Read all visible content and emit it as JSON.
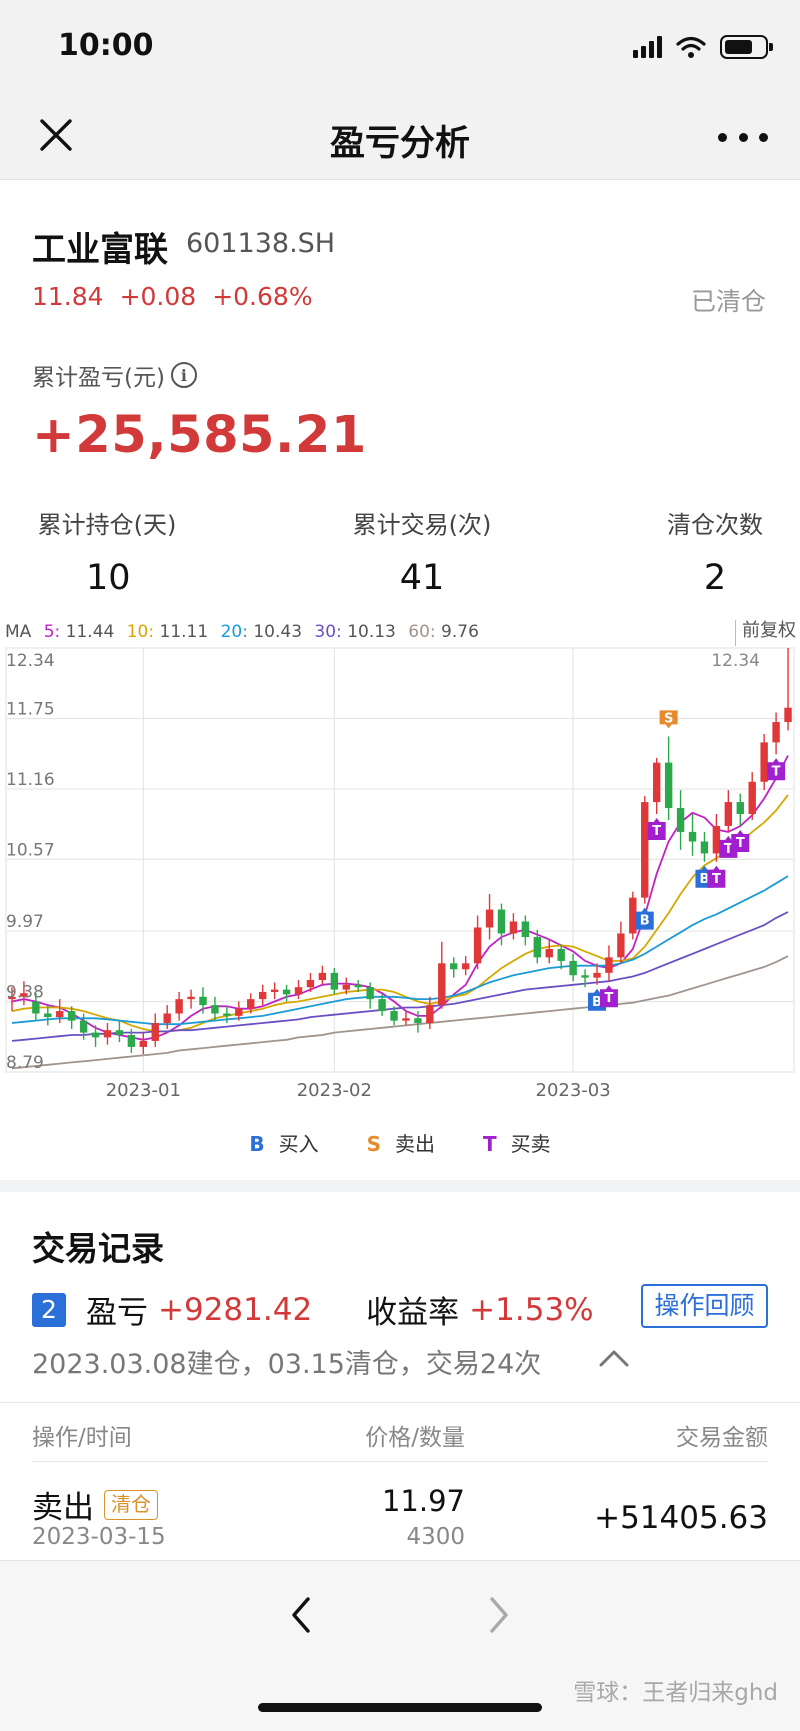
{
  "status_bar": {
    "time": "10:00"
  },
  "nav": {
    "title": "盈亏分析"
  },
  "stock": {
    "name": "工业富联",
    "code": "601138.SH",
    "price": "11.84",
    "change": "+0.08",
    "change_pct": "+0.68%",
    "status": "已清仓"
  },
  "summary": {
    "cumulative_pnl_label": "累计盈亏(元)",
    "cumulative_pnl_value": "+25,585.21",
    "stats": [
      {
        "label": "累计持仓(天)",
        "value": "10"
      },
      {
        "label": "累计交易(次)",
        "value": "41"
      },
      {
        "label": "清仓次数",
        "value": "2"
      }
    ]
  },
  "chart_data": {
    "type": "candlestick",
    "ma_prefix": "MA",
    "ma_legend": [
      {
        "name": "5:",
        "value": "11.44",
        "color": "#c020c8"
      },
      {
        "name": "10:",
        "value": "11.11",
        "color": "#d4a800"
      },
      {
        "name": "20:",
        "value": "10.43",
        "color": "#1a9ad6"
      },
      {
        "name": "30:",
        "value": "10.13",
        "color": "#6a4fc4"
      },
      {
        "name": "60:",
        "value": "9.76",
        "color": "#a0948c"
      }
    ],
    "adjustment_label": "前复权",
    "y_ticks": [
      "12.34",
      "11.75",
      "11.16",
      "10.57",
      "9.97",
      "9.38",
      "8.79"
    ],
    "ylim": [
      8.79,
      12.34
    ],
    "max_label": "12.34",
    "x_labels": [
      {
        "label": "2023-01",
        "index": 11
      },
      {
        "label": "2023-02",
        "index": 27
      },
      {
        "label": "2023-03",
        "index": 47
      }
    ],
    "candles": [
      [
        9.4,
        9.42,
        9.3,
        9.5
      ],
      [
        9.42,
        9.45,
        9.35,
        9.55
      ],
      [
        9.38,
        9.28,
        9.22,
        9.45
      ],
      [
        9.28,
        9.25,
        9.18,
        9.35
      ],
      [
        9.25,
        9.3,
        9.2,
        9.4
      ],
      [
        9.3,
        9.22,
        9.15,
        9.34
      ],
      [
        9.22,
        9.12,
        9.06,
        9.28
      ],
      [
        9.12,
        9.08,
        9.0,
        9.18
      ],
      [
        9.08,
        9.14,
        9.02,
        9.2
      ],
      [
        9.14,
        9.1,
        9.04,
        9.22
      ],
      [
        9.1,
        9.0,
        8.95,
        9.15
      ],
      [
        9.0,
        9.05,
        8.94,
        9.12
      ],
      [
        9.05,
        9.2,
        9.0,
        9.28
      ],
      [
        9.2,
        9.28,
        9.15,
        9.35
      ],
      [
        9.28,
        9.4,
        9.22,
        9.46
      ],
      [
        9.4,
        9.42,
        9.32,
        9.48
      ],
      [
        9.42,
        9.35,
        9.28,
        9.5
      ],
      [
        9.35,
        9.28,
        9.22,
        9.42
      ],
      [
        9.28,
        9.26,
        9.2,
        9.34
      ],
      [
        9.26,
        9.32,
        9.22,
        9.38
      ],
      [
        9.32,
        9.4,
        9.28,
        9.45
      ],
      [
        9.4,
        9.46,
        9.35,
        9.52
      ],
      [
        9.46,
        9.48,
        9.4,
        9.54
      ],
      [
        9.48,
        9.44,
        9.38,
        9.52
      ],
      [
        9.44,
        9.5,
        9.4,
        9.56
      ],
      [
        9.5,
        9.56,
        9.46,
        9.62
      ],
      [
        9.56,
        9.62,
        9.52,
        9.68
      ],
      [
        9.62,
        9.48,
        9.44,
        9.66
      ],
      [
        9.48,
        9.52,
        9.44,
        9.58
      ],
      [
        9.52,
        9.5,
        9.46,
        9.56
      ],
      [
        9.5,
        9.4,
        9.32,
        9.54
      ],
      [
        9.4,
        9.3,
        9.26,
        9.44
      ],
      [
        9.3,
        9.22,
        9.18,
        9.34
      ],
      [
        9.22,
        9.24,
        9.18,
        9.3
      ],
      [
        9.24,
        9.2,
        9.12,
        9.3
      ],
      [
        9.2,
        9.35,
        9.15,
        9.42
      ],
      [
        9.35,
        9.7,
        9.32,
        9.88
      ],
      [
        9.7,
        9.65,
        9.58,
        9.75
      ],
      [
        9.65,
        9.7,
        9.6,
        9.76
      ],
      [
        9.7,
        10.0,
        9.65,
        10.1
      ],
      [
        10.0,
        10.15,
        9.9,
        10.28
      ],
      [
        10.15,
        9.95,
        9.85,
        10.2
      ],
      [
        9.95,
        10.05,
        9.9,
        10.12
      ],
      [
        10.05,
        9.92,
        9.85,
        10.1
      ],
      [
        9.92,
        9.75,
        9.7,
        9.98
      ],
      [
        9.75,
        9.82,
        9.7,
        9.9
      ],
      [
        9.82,
        9.72,
        9.65,
        9.86
      ],
      [
        9.72,
        9.6,
        9.55,
        9.78
      ],
      [
        9.6,
        9.58,
        9.5,
        9.65
      ],
      [
        9.58,
        9.62,
        9.52,
        9.7
      ],
      [
        9.62,
        9.75,
        9.55,
        9.85
      ],
      [
        9.75,
        9.95,
        9.7,
        10.05
      ],
      [
        9.95,
        10.25,
        9.9,
        10.3
      ],
      [
        10.25,
        11.05,
        10.2,
        11.1
      ],
      [
        11.05,
        11.38,
        10.95,
        11.42
      ],
      [
        11.38,
        11.0,
        10.9,
        11.6
      ],
      [
        11.0,
        10.8,
        10.65,
        11.15
      ],
      [
        10.8,
        10.72,
        10.6,
        10.95
      ],
      [
        10.72,
        10.62,
        10.55,
        10.8
      ],
      [
        10.62,
        10.85,
        10.55,
        10.95
      ],
      [
        10.85,
        11.05,
        10.8,
        11.15
      ],
      [
        11.05,
        10.95,
        10.85,
        11.12
      ],
      [
        10.95,
        11.22,
        10.9,
        11.3
      ],
      [
        11.22,
        11.55,
        11.15,
        11.62
      ],
      [
        11.55,
        11.72,
        11.45,
        11.8
      ],
      [
        11.72,
        11.84,
        11.65,
        12.34
      ]
    ],
    "ma_series": {
      "ma5": [
        9.38,
        9.4,
        9.38,
        9.35,
        9.33,
        9.28,
        9.22,
        9.16,
        9.12,
        9.1,
        9.08,
        9.06,
        9.08,
        9.12,
        9.18,
        9.26,
        9.32,
        9.34,
        9.34,
        9.32,
        9.32,
        9.34,
        9.38,
        9.42,
        9.44,
        9.48,
        9.52,
        9.53,
        9.53,
        9.52,
        9.5,
        9.45,
        9.38,
        9.3,
        9.26,
        9.26,
        9.34,
        9.44,
        9.52,
        9.7,
        9.84,
        9.92,
        9.96,
        9.98,
        9.94,
        9.9,
        9.85,
        9.8,
        9.72,
        9.68,
        9.66,
        9.7,
        9.82,
        10.1,
        10.45,
        10.72,
        10.88,
        10.96,
        10.92,
        10.82,
        10.8,
        10.85,
        10.94,
        11.08,
        11.25,
        11.44
      ],
      "ma10": [
        9.3,
        9.32,
        9.33,
        9.33,
        9.33,
        9.32,
        9.3,
        9.27,
        9.24,
        9.22,
        9.18,
        9.15,
        9.13,
        9.13,
        9.14,
        9.16,
        9.2,
        9.24,
        9.26,
        9.28,
        9.3,
        9.32,
        9.35,
        9.37,
        9.38,
        9.4,
        9.42,
        9.44,
        9.46,
        9.47,
        9.48,
        9.48,
        9.46,
        9.42,
        9.38,
        9.36,
        9.38,
        9.42,
        9.44,
        9.5,
        9.58,
        9.66,
        9.72,
        9.78,
        9.82,
        9.84,
        9.85,
        9.84,
        9.8,
        9.76,
        9.72,
        9.72,
        9.74,
        9.84,
        9.98,
        10.12,
        10.28,
        10.42,
        10.52,
        10.58,
        10.65,
        10.72,
        10.8,
        10.88,
        10.98,
        11.11
      ],
      "ma20": [
        9.2,
        9.21,
        9.22,
        9.23,
        9.24,
        9.24,
        9.24,
        9.24,
        9.23,
        9.22,
        9.21,
        9.2,
        9.19,
        9.19,
        9.19,
        9.2,
        9.21,
        9.22,
        9.23,
        9.24,
        9.25,
        9.26,
        9.28,
        9.3,
        9.32,
        9.34,
        9.36,
        9.38,
        9.4,
        9.41,
        9.42,
        9.42,
        9.42,
        9.41,
        9.4,
        9.4,
        9.41,
        9.43,
        9.46,
        9.5,
        9.54,
        9.57,
        9.6,
        9.62,
        9.64,
        9.66,
        9.67,
        9.68,
        9.68,
        9.68,
        9.68,
        9.7,
        9.73,
        9.78,
        9.84,
        9.9,
        9.96,
        10.02,
        10.07,
        10.11,
        10.16,
        10.21,
        10.26,
        10.31,
        10.37,
        10.43
      ],
      "ma30": [
        9.05,
        9.06,
        9.07,
        9.08,
        9.09,
        9.1,
        9.1,
        9.11,
        9.11,
        9.12,
        9.12,
        9.12,
        9.13,
        9.13,
        9.14,
        9.14,
        9.15,
        9.16,
        9.17,
        9.18,
        9.19,
        9.2,
        9.21,
        9.22,
        9.23,
        9.25,
        9.26,
        9.27,
        9.28,
        9.29,
        9.3,
        9.31,
        9.32,
        9.33,
        9.33,
        9.34,
        9.35,
        9.36,
        9.38,
        9.4,
        9.42,
        9.44,
        9.46,
        9.48,
        9.49,
        9.5,
        9.51,
        9.52,
        9.53,
        9.54,
        9.55,
        9.57,
        9.59,
        9.62,
        9.66,
        9.7,
        9.74,
        9.78,
        9.82,
        9.86,
        9.9,
        9.94,
        9.98,
        10.02,
        10.08,
        10.13
      ],
      "ma60": [
        8.82,
        8.83,
        8.84,
        8.85,
        8.86,
        8.87,
        8.88,
        8.89,
        8.9,
        8.91,
        8.92,
        8.93,
        8.94,
        8.95,
        8.97,
        8.98,
        8.99,
        9.0,
        9.01,
        9.02,
        9.03,
        9.04,
        9.05,
        9.06,
        9.08,
        9.09,
        9.1,
        9.12,
        9.13,
        9.14,
        9.15,
        9.16,
        9.17,
        9.18,
        9.19,
        9.2,
        9.21,
        9.22,
        9.23,
        9.24,
        9.25,
        9.26,
        9.27,
        9.28,
        9.29,
        9.3,
        9.31,
        9.32,
        9.33,
        9.34,
        9.35,
        9.36,
        9.37,
        9.39,
        9.41,
        9.43,
        9.46,
        9.49,
        9.52,
        9.55,
        9.58,
        9.61,
        9.64,
        9.67,
        9.71,
        9.76
      ]
    },
    "trade_markers": [
      {
        "type": "B",
        "index": 49
      },
      {
        "type": "T",
        "index": 50
      },
      {
        "type": "B",
        "index": 53
      },
      {
        "type": "T",
        "index": 54
      },
      {
        "type": "S",
        "index": 55
      },
      {
        "type": "B",
        "index": 58
      },
      {
        "type": "T",
        "index": 59
      },
      {
        "type": "T",
        "index": 60
      },
      {
        "type": "T",
        "index": 61
      },
      {
        "type": "T",
        "index": 64
      },
      {
        "type": "S",
        "index": 65
      }
    ],
    "legend": [
      {
        "key": "B",
        "label": "买入",
        "color": "#2b6fd8"
      },
      {
        "key": "S",
        "label": "卖出",
        "color": "#e8892c"
      },
      {
        "key": "T",
        "label": "买卖",
        "color": "#a21fd0"
      }
    ],
    "colors": {
      "up": "#e03838",
      "down": "#2aa84a",
      "grid": "#e6e6e6"
    }
  },
  "records": {
    "title": "交易记录",
    "index": "2",
    "pnl_label": "盈亏",
    "pnl_value": "+9281.42",
    "return_label": "收益率",
    "return_value": "+1.53%",
    "review_button": "操作回顾",
    "summary": "2023.03.08建仓，03.15清仓，交易24次",
    "columns": [
      "操作/时间",
      "价格/数量",
      "交易金额"
    ],
    "rows": [
      {
        "action": "卖出",
        "badge": "清仓",
        "date": "2023-03-15",
        "price": "11.97",
        "quantity": "4300",
        "amount": "+51405.63"
      }
    ]
  },
  "watermark": "雪球：王者归来ghd"
}
